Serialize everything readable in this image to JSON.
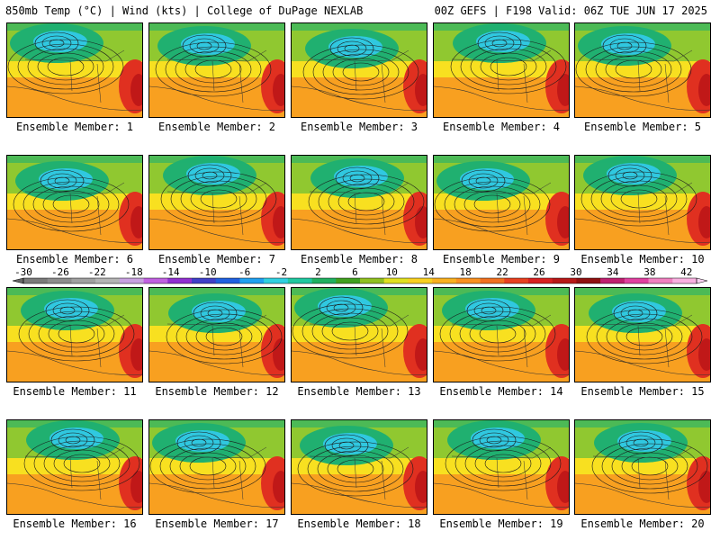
{
  "header": {
    "title_left": "850mb Temp (°C) | Wind (kts) | College of DuPage NEXLAB",
    "title_right": "00Z GEFS | F198 Valid: 06Z TUE JUN 17 2025"
  },
  "members": [
    {
      "label": "Ensemble Member: 1"
    },
    {
      "label": "Ensemble Member: 2"
    },
    {
      "label": "Ensemble Member: 3"
    },
    {
      "label": "Ensemble Member: 4"
    },
    {
      "label": "Ensemble Member: 5"
    },
    {
      "label": "Ensemble Member: 6"
    },
    {
      "label": "Ensemble Member: 7"
    },
    {
      "label": "Ensemble Member: 8"
    },
    {
      "label": "Ensemble Member: 9"
    },
    {
      "label": "Ensemble Member: 10"
    },
    {
      "label": "Ensemble Member: 11"
    },
    {
      "label": "Ensemble Member: 12"
    },
    {
      "label": "Ensemble Member: 13"
    },
    {
      "label": "Ensemble Member: 14"
    },
    {
      "label": "Ensemble Member: 15"
    },
    {
      "label": "Ensemble Member: 16"
    },
    {
      "label": "Ensemble Member: 17"
    },
    {
      "label": "Ensemble Member: 18"
    },
    {
      "label": "Ensemble Member: 19"
    },
    {
      "label": "Ensemble Member: 20"
    }
  ],
  "colorbar": {
    "ticks": [
      "-30",
      "-26",
      "-22",
      "-18",
      "-14",
      "-10",
      "-6",
      "-2",
      "2",
      "6",
      "10",
      "14",
      "18",
      "22",
      "26",
      "30",
      "34",
      "38",
      "42"
    ],
    "colors": [
      "#7a7a7a",
      "#8c8c8c",
      "#a0a0a0",
      "#b4b4b4",
      "#c8a0e0",
      "#c060e0",
      "#9030d0",
      "#4040c8",
      "#2060e0",
      "#20a0f0",
      "#30d0e0",
      "#20c8a0",
      "#20b060",
      "#40a020",
      "#90c020",
      "#e0e020",
      "#f8d020",
      "#f8b020",
      "#f89020",
      "#f07020",
      "#e84020",
      "#d82020",
      "#b81818",
      "#901010",
      "#c02070",
      "#e040a0",
      "#f080c0",
      "#f8b0e0"
    ]
  },
  "map_palette": {
    "cold": "#30c8e0",
    "cool": "#20b070",
    "mild": "#90c830",
    "warm": "#f8e020",
    "hot": "#f8a020",
    "hotter": "#f08020",
    "very_hot": "#e03020",
    "extreme": "#c01818",
    "contour": "#1a1a1a",
    "border": "#333333"
  }
}
